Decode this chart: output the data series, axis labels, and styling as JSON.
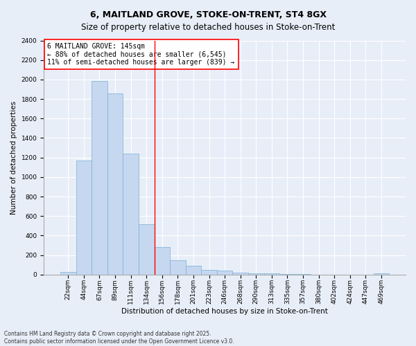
{
  "title": "6, MAITLAND GROVE, STOKE-ON-TRENT, ST4 8GX",
  "subtitle": "Size of property relative to detached houses in Stoke-on-Trent",
  "xlabel": "Distribution of detached houses by size in Stoke-on-Trent",
  "ylabel": "Number of detached properties",
  "bin_labels": [
    "22sqm",
    "44sqm",
    "67sqm",
    "89sqm",
    "111sqm",
    "134sqm",
    "156sqm",
    "178sqm",
    "201sqm",
    "223sqm",
    "246sqm",
    "268sqm",
    "290sqm",
    "313sqm",
    "335sqm",
    "357sqm",
    "380sqm",
    "402sqm",
    "424sqm",
    "447sqm",
    "469sqm"
  ],
  "bar_values": [
    25,
    1170,
    1985,
    1860,
    1240,
    520,
    280,
    150,
    90,
    45,
    40,
    20,
    15,
    10,
    5,
    3,
    2,
    2,
    1,
    1,
    15
  ],
  "bar_color": "#c5d8f0",
  "bar_edge_color": "#7aafd4",
  "vline_x": 5.5,
  "vline_color": "red",
  "annotation_text": "6 MAITLAND GROVE: 145sqm\n← 88% of detached houses are smaller (6,545)\n11% of semi-detached houses are larger (839) →",
  "annotation_box_color": "white",
  "annotation_box_edge": "red",
  "ylim": [
    0,
    2400
  ],
  "yticks": [
    0,
    200,
    400,
    600,
    800,
    1000,
    1200,
    1400,
    1600,
    1800,
    2000,
    2200,
    2400
  ],
  "background_color": "#e8eef8",
  "footer_text": "Contains HM Land Registry data © Crown copyright and database right 2025.\nContains public sector information licensed under the Open Government Licence v3.0.",
  "title_fontsize": 9,
  "subtitle_fontsize": 8.5,
  "axis_label_fontsize": 7.5,
  "tick_fontsize": 6.5,
  "annotation_fontsize": 7,
  "footer_fontsize": 5.5
}
